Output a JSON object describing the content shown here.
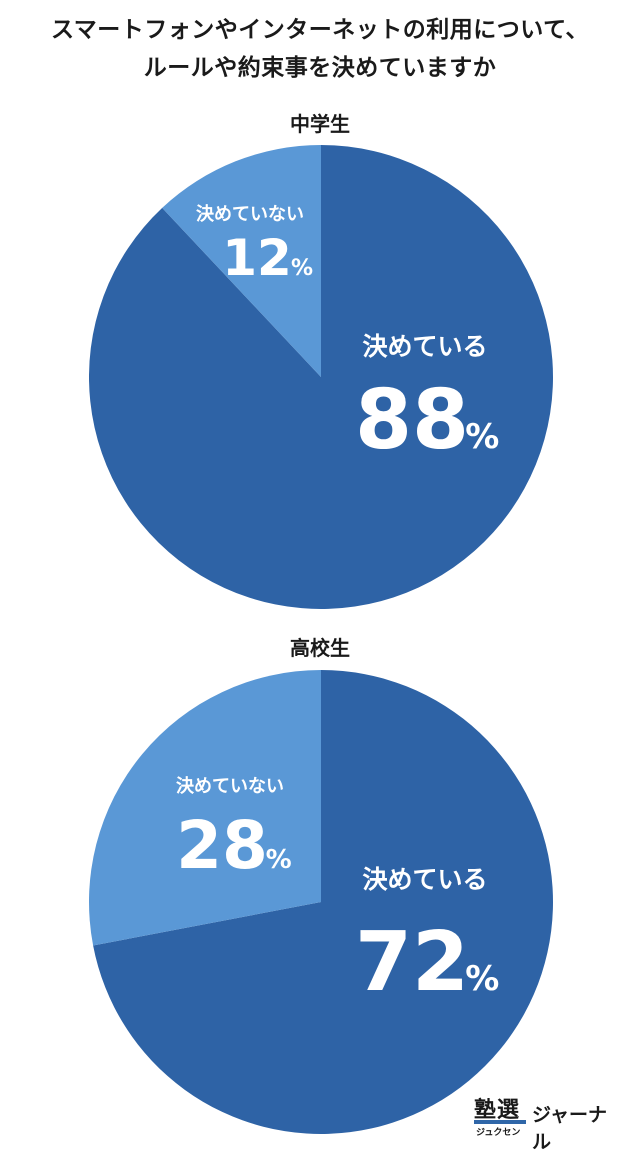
{
  "title": {
    "line1": "スマートフォンやインターネットの利用について、",
    "line2": "ルールや約束事を決めていますか"
  },
  "colors": {
    "decided": "#2e63a6",
    "not_decided": "#5a98d6",
    "text": "#ffffff"
  },
  "chart_data": [
    {
      "type": "pie",
      "title": "中学生",
      "slices": [
        {
          "label": "決めている",
          "value": 88,
          "display": "88",
          "unit": "%"
        },
        {
          "label": "決めていない",
          "value": 12,
          "display": "12",
          "unit": "%"
        }
      ]
    },
    {
      "type": "pie",
      "title": "高校生",
      "slices": [
        {
          "label": "決めている",
          "value": 72,
          "display": "72",
          "unit": "%"
        },
        {
          "label": "決めていない",
          "value": 28,
          "display": "28",
          "unit": "%"
        }
      ]
    }
  ],
  "logo": {
    "kanji": "塾選",
    "kana": "ジュクセン",
    "word": "ジャーナル"
  }
}
